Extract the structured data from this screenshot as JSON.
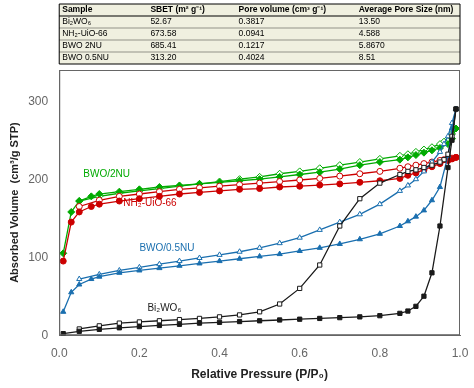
{
  "chart_data": {
    "type": "line",
    "xlabel": "Relative Pressure (P/P₀)",
    "ylabel": "Absorbed Volume  (cm³/g STP)",
    "xlim": [
      0,
      1.0
    ],
    "xticks": [
      {
        "value": 0,
        "label": "0.0"
      },
      0.2,
      0.4,
      0.6,
      0.8,
      {
        "value": 1.0,
        "label": "1.0"
      }
    ],
    "ylim": [
      0,
      340
    ],
    "yticks": [
      0,
      100,
      200,
      300
    ],
    "grid": false,
    "series": [
      {
        "name": "Bi₂WO₆",
        "color": "#1a1a1a",
        "marker": "square",
        "adsorption": {
          "x": [
            0.01,
            0.05,
            0.1,
            0.15,
            0.2,
            0.25,
            0.3,
            0.35,
            0.4,
            0.45,
            0.5,
            0.55,
            0.6,
            0.65,
            0.7,
            0.75,
            0.8,
            0.85,
            0.87,
            0.89,
            0.91,
            0.93,
            0.95,
            0.97,
            0.98,
            0.99
          ],
          "values": [
            2.0,
            5.0,
            7.5,
            9.5,
            11.0,
            12.5,
            14.0,
            15.5,
            16.5,
            17.5,
            18.5,
            19.5,
            20.5,
            21.5,
            22.5,
            23.5,
            25.0,
            28.0,
            31.0,
            37.0,
            50.0,
            80.0,
            140.0,
            215.0,
            250.0,
            290.0
          ]
        },
        "desorption": {
          "x": [
            0.99,
            0.98,
            0.97,
            0.96,
            0.95,
            0.93,
            0.91,
            0.89,
            0.87,
            0.85,
            0.8,
            0.75,
            0.7,
            0.65,
            0.6,
            0.55,
            0.5,
            0.45,
            0.4,
            0.35,
            0.3,
            0.25,
            0.2,
            0.15,
            0.1,
            0.05
          ],
          "values": [
            290.0,
            255.0,
            232.0,
            225.0,
            222.0,
            218.0,
            215.0,
            212.0,
            210.0,
            206.0,
            195.0,
            175.0,
            140.0,
            90.0,
            60.0,
            40.0,
            30.0,
            26.0,
            23.5,
            21.5,
            20.0,
            18.5,
            17.0,
            15.5,
            12.0,
            8.0
          ]
        }
      },
      {
        "name": "BWO/0.5NU",
        "color": "#1a6faf",
        "marker": "triangle",
        "adsorption": {
          "x": [
            0.01,
            0.03,
            0.05,
            0.08,
            0.1,
            0.15,
            0.2,
            0.25,
            0.3,
            0.35,
            0.4,
            0.45,
            0.5,
            0.55,
            0.6,
            0.65,
            0.7,
            0.75,
            0.8,
            0.85,
            0.87,
            0.89,
            0.91,
            0.93,
            0.95,
            0.97,
            0.98,
            0.99
          ],
          "values": [
            30.0,
            55.0,
            65.0,
            72.0,
            75.0,
            80.0,
            83.0,
            86.0,
            89.0,
            92.0,
            95.0,
            98.0,
            101.0,
            104.0,
            108.0,
            112.0,
            117.0,
            123.0,
            130.0,
            140.0,
            146.0,
            152.0,
            160.0,
            173.0,
            190.0,
            230.0,
            265.0,
            290.0
          ]
        },
        "desorption": {
          "x": [
            0.99,
            0.98,
            0.97,
            0.96,
            0.95,
            0.93,
            0.91,
            0.89,
            0.87,
            0.85,
            0.8,
            0.75,
            0.7,
            0.65,
            0.6,
            0.55,
            0.5,
            0.45,
            0.4,
            0.35,
            0.3,
            0.25,
            0.2,
            0.15,
            0.1,
            0.05
          ],
          "values": [
            290.0,
            272.0,
            255.0,
            245.0,
            235.0,
            222.0,
            210.0,
            200.0,
            192.0,
            185.0,
            168.0,
            155.0,
            145.0,
            135.0,
            125.0,
            118.0,
            112.0,
            107.0,
            103.0,
            99.0,
            95.0,
            91.0,
            87.0,
            83.0,
            78.0,
            72.0
          ]
        }
      },
      {
        "name": "NH₂-UiO-66",
        "color": "#cc0000",
        "marker": "circle",
        "adsorption": {
          "x": [
            0.01,
            0.03,
            0.05,
            0.08,
            0.1,
            0.15,
            0.2,
            0.25,
            0.3,
            0.35,
            0.4,
            0.45,
            0.5,
            0.55,
            0.6,
            0.65,
            0.7,
            0.75,
            0.8,
            0.85,
            0.87,
            0.89,
            0.91,
            0.93,
            0.95,
            0.97,
            0.98,
            0.99
          ],
          "values": [
            95.0,
            145.0,
            158.0,
            165.0,
            168.0,
            172.0,
            175.0,
            178.0,
            181.0,
            183.0,
            185.0,
            187.0,
            188.0,
            190.0,
            191.0,
            192.5,
            194.0,
            196.0,
            198.0,
            201.0,
            205.0,
            208.0,
            212.0,
            216.0,
            220.0,
            224.0,
            226.0,
            228.0
          ]
        },
        "desorption": {
          "x": [
            0.99,
            0.98,
            0.97,
            0.96,
            0.95,
            0.93,
            0.91,
            0.89,
            0.87,
            0.85,
            0.8,
            0.75,
            0.7,
            0.65,
            0.6,
            0.55,
            0.5,
            0.45,
            0.4,
            0.35,
            0.3,
            0.25,
            0.2,
            0.15,
            0.1,
            0.05
          ],
          "values": [
            228.0,
            227.0,
            226.0,
            225.0,
            224.0,
            222.0,
            220.0,
            218.0,
            216.0,
            214.0,
            210.0,
            207.0,
            204.0,
            201.0,
            199.0,
            197.0,
            195.0,
            193.0,
            191.0,
            189.0,
            187.0,
            184.0,
            181.0,
            178.0,
            173.0,
            165.0
          ]
        }
      },
      {
        "name": "BWO/2NU",
        "color": "#00aa00",
        "marker": "diamond",
        "adsorption": {
          "x": [
            0.01,
            0.03,
            0.05,
            0.08,
            0.1,
            0.15,
            0.2,
            0.25,
            0.3,
            0.35,
            0.4,
            0.45,
            0.5,
            0.55,
            0.6,
            0.65,
            0.7,
            0.75,
            0.8,
            0.85,
            0.87,
            0.89,
            0.91,
            0.93,
            0.95,
            0.97,
            0.98,
            0.99
          ],
          "values": [
            105.0,
            158.0,
            172.0,
            178.0,
            181.0,
            184.0,
            187.0,
            190.0,
            192.0,
            194.0,
            196.0,
            198.0,
            200.0,
            203.0,
            206.0,
            209.0,
            213.0,
            218.0,
            222.0,
            225.0,
            228.0,
            231.0,
            234.0,
            237.0,
            240.0,
            245.0,
            252.0,
            265.0
          ]
        },
        "desorption": {
          "x": [
            0.99,
            0.98,
            0.97,
            0.96,
            0.95,
            0.93,
            0.91,
            0.89,
            0.87,
            0.85,
            0.8,
            0.75,
            0.7,
            0.65,
            0.6,
            0.55,
            0.5,
            0.45,
            0.4,
            0.35,
            0.3,
            0.25,
            0.2,
            0.15,
            0.1,
            0.05
          ],
          "values": [
            265.0,
            258.0,
            252.0,
            248.0,
            245.0,
            241.0,
            238.0,
            235.0,
            232.0,
            230.0,
            226.0,
            222.0,
            218.0,
            214.0,
            210.0,
            207.0,
            203.0,
            200.0,
            197.0,
            194.0,
            191.0,
            188.0,
            185.0,
            182.0,
            178.0,
            172.0
          ]
        }
      }
    ],
    "annotations": [
      {
        "text": "Bi₂WO₆",
        "x": 0.22,
        "y": 28,
        "color": "#1a1a1a"
      },
      {
        "text": "BWO/0.5NU",
        "x": 0.2,
        "y": 105,
        "color": "#1a6faf"
      },
      {
        "text": "NH₂-UiO-66",
        "x": 0.16,
        "y": 163,
        "color": "#cc0000"
      },
      {
        "text": "BWO/2NU",
        "x": 0.06,
        "y": 200,
        "color": "#00aa00"
      }
    ],
    "table": {
      "color": "#f0f0e0",
      "headers": [
        "Sample",
        "SBET (m² g⁻¹)",
        "Pore volume (cm³ g⁻¹)",
        "Average Pore Size (nm)"
      ],
      "rows": [
        [
          "Bi₂WO₆",
          "52.67",
          "0.3817",
          "13.50"
        ],
        [
          "NH₂-UiO-66",
          "673.58",
          "0.0941",
          "4.588"
        ],
        [
          "BWO 2NU",
          "685.41",
          "0.1217",
          "5.8670"
        ],
        [
          "BWO 0.5NU",
          "313.20",
          "0.4024",
          "8.51"
        ]
      ]
    }
  }
}
